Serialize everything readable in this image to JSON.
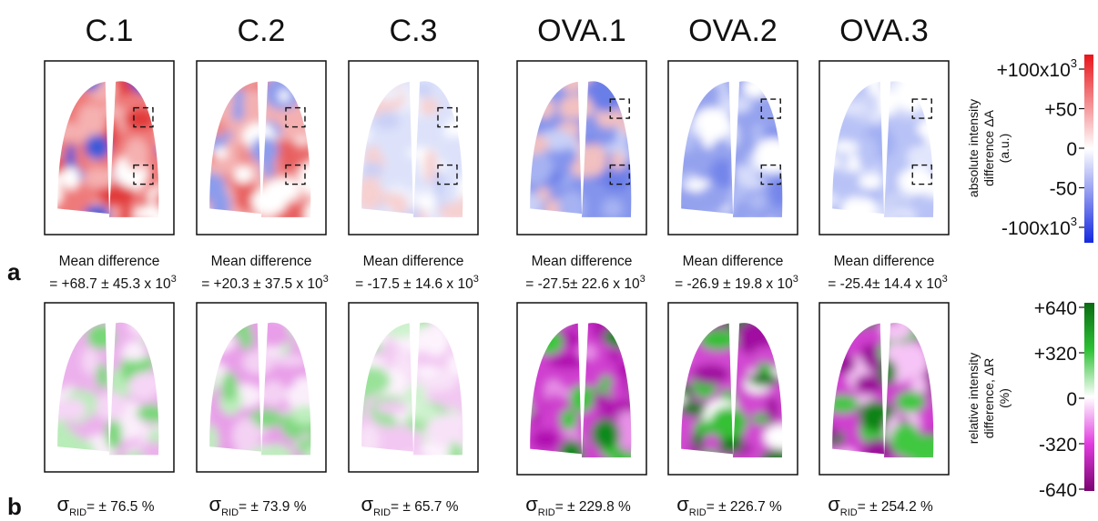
{
  "columns": [
    "C.1",
    "C.2",
    "C.3",
    "OVA.1",
    "OVA.2",
    "OVA.3"
  ],
  "panel_a": {
    "label": "a",
    "captions": [
      {
        "line1": "Mean difference",
        "line2": "= +68.7 ± 45.3 x 10",
        "exponent": "3"
      },
      {
        "line1": "Mean difference",
        "line2": "= +20.3 ± 37.5 x 10",
        "exponent": "3"
      },
      {
        "line1": "Mean difference",
        "line2": "= -17.5 ± 14.6 x 10",
        "exponent": "3"
      },
      {
        "line1": "Mean difference",
        "line2": "= -27.5± 22.6 x 10",
        "exponent": "3"
      },
      {
        "line1": "Mean difference",
        "line2": "= -26.9 ± 19.8 x 10",
        "exponent": "3"
      },
      {
        "line1": "Mean difference",
        "line2": "= -25.4± 14.4 x 10",
        "exponent": "3"
      }
    ],
    "colorbar": {
      "ticks": [
        {
          "text": "+100x10",
          "exponent": "3"
        },
        {
          "text": "+50"
        },
        {
          "text": "0"
        },
        {
          "text": "-50"
        },
        {
          "text": "-100x10",
          "exponent": "3"
        }
      ],
      "label": [
        "absolute intensity",
        "difference ΔA",
        "(a.u.)"
      ]
    }
  },
  "panel_b": {
    "label": "b",
    "captions": [
      {
        "symbol": "σ",
        "subscript": "RID",
        "text": "= ± 76.5 %"
      },
      {
        "symbol": "σ",
        "subscript": "RID",
        "text": "= ± 73.9  %"
      },
      {
        "symbol": "σ",
        "subscript": "RID",
        "text": "= ± 65.7 %"
      },
      {
        "symbol": "σ",
        "subscript": "RID",
        "text": "= ± 229.8 %"
      },
      {
        "symbol": "σ",
        "subscript": "RID",
        "text": "= ± 226.7 %"
      },
      {
        "symbol": "σ",
        "subscript": "RID",
        "text": "= ± 254.2 %"
      }
    ],
    "colorbar": {
      "ticks": [
        {
          "text": "+640"
        },
        {
          "text": "+320"
        },
        {
          "text": "0"
        },
        {
          "text": "-320"
        },
        {
          "text": "-640"
        }
      ],
      "label": [
        "relative intensity",
        "difference, ΔR",
        "(%)"
      ]
    }
  }
}
